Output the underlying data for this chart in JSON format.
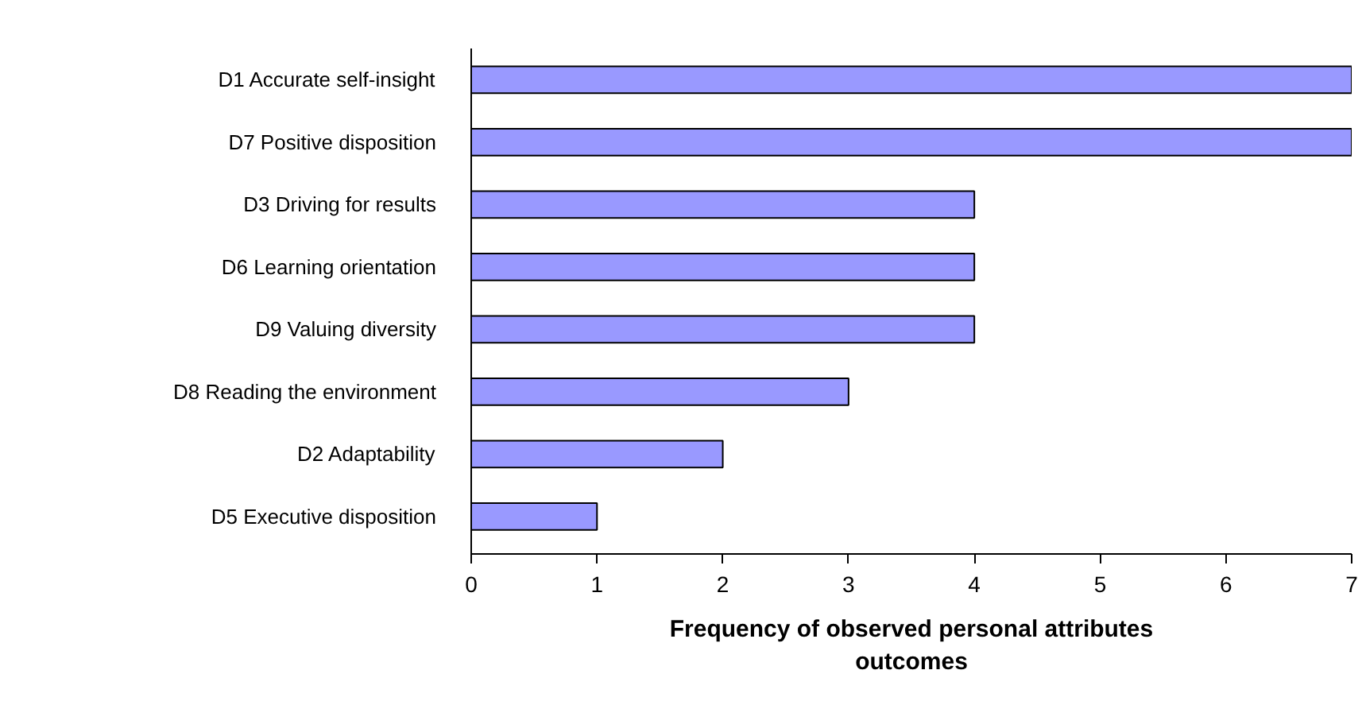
{
  "chart_data": {
    "type": "bar",
    "orientation": "horizontal",
    "categories": [
      "D1 Accurate self-insight",
      "D7 Positive disposition",
      "D3 Driving for results",
      "D6 Learning orientation",
      "D9 Valuing diversity",
      "D8 Reading the environment",
      "D2 Adaptability",
      "D5 Executive disposition"
    ],
    "values": [
      7,
      7,
      4,
      4,
      4,
      3,
      2,
      1
    ],
    "color": "#9999ff",
    "xlabel": "Frequency of observed personal attributes outcomes",
    "xlim": [
      0,
      7
    ],
    "xticks": [
      0,
      1,
      2,
      3,
      4,
      5,
      6,
      7
    ],
    "grid": false
  }
}
